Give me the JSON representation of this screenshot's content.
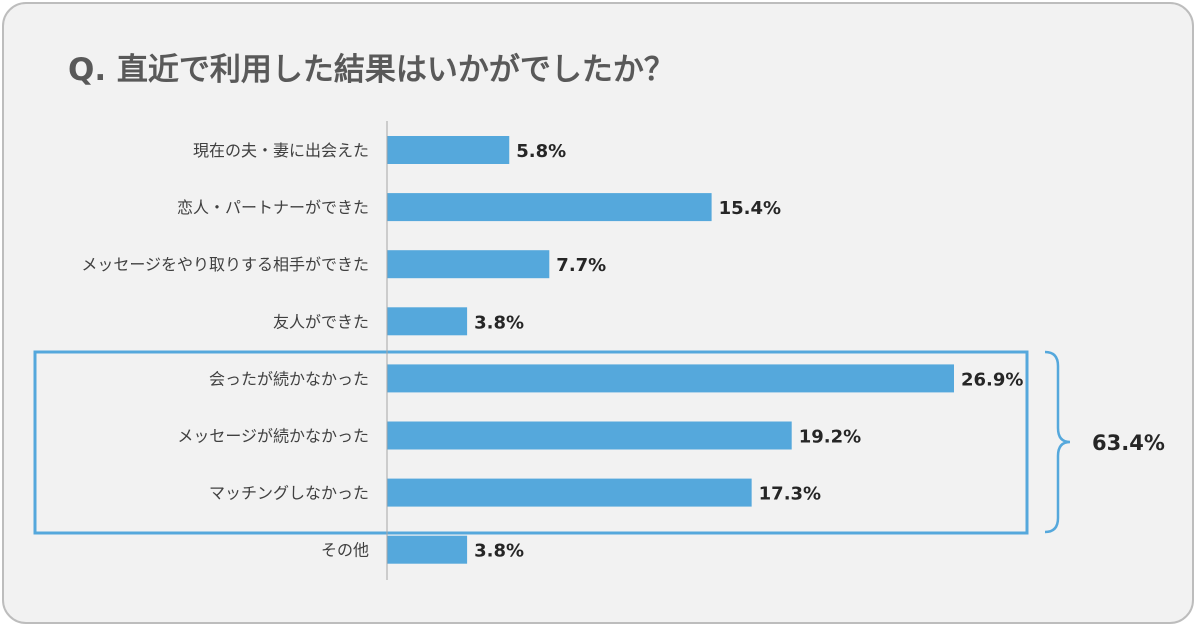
{
  "chart_data": {
    "type": "bar",
    "orientation": "horizontal",
    "title": "Q. 直近で利用した結果はいかがでしたか？",
    "categories": [
      "現在の夫・妻に出会えた",
      "恋人・パートナーができた",
      "メッセージをやり取りする相手ができた",
      "友人ができた",
      "会ったが続かなかった",
      "メッセージが続かなかった",
      "マッチングしなかった",
      "その他"
    ],
    "values": [
      5.8,
      15.4,
      7.7,
      3.8,
      26.9,
      19.2,
      17.3,
      3.8
    ],
    "value_labels": [
      "5.8%",
      "15.4%",
      "7.7%",
      "3.8%",
      "26.9%",
      "19.2%",
      "17.3%",
      "3.8%"
    ],
    "xlim": [
      0,
      26.9
    ],
    "grid": false,
    "bar_color": "#55a8dc",
    "highlight": {
      "category_indices": [
        4,
        5,
        6
      ],
      "total_label": "63.4%",
      "color": "#55a8dc"
    }
  }
}
